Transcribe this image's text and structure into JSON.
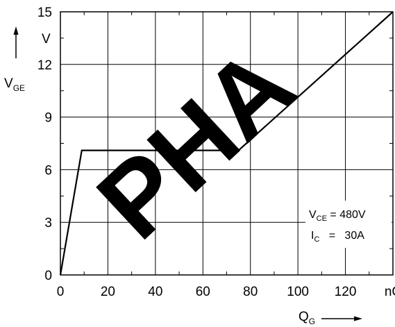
{
  "chart_data": {
    "type": "line",
    "xlabel": "Q",
    "xlabel_sub": "G",
    "ylabel": "V",
    "ylabel_sub": "GE",
    "x_unit": "nC",
    "y_unit": "V",
    "xlim": [
      0,
      140
    ],
    "ylim": [
      0,
      15
    ],
    "x_ticks": [
      "0",
      "20",
      "40",
      "60",
      "80",
      "100",
      "120",
      "nC"
    ],
    "y_ticks": [
      "0",
      "3",
      "6",
      "9",
      "12",
      "15"
    ],
    "grid": true,
    "series": [
      {
        "x": [
          0,
          9,
          75,
          140
        ],
        "y": [
          0,
          7.1,
          7.1,
          15
        ]
      }
    ],
    "annotation": {
      "line1_main": "V",
      "line1_sub": "CE",
      "line1_value": " = 480V",
      "line2_main": "I",
      "line2_sub": "C",
      "line2_value": "   =   30A"
    },
    "watermark": "PHA"
  }
}
